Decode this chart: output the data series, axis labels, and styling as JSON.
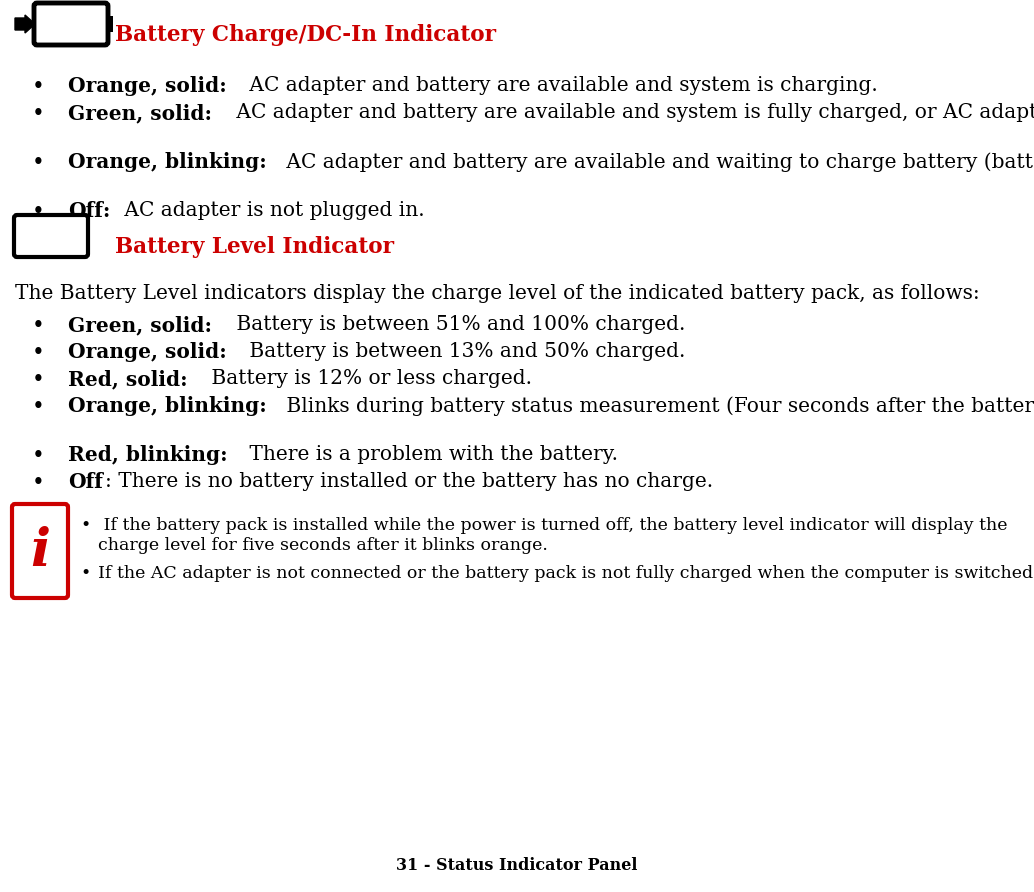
{
  "background_color": "#ffffff",
  "title_color": "#cc0000",
  "text_color": "#000000",
  "footer_text": "31 - Status Indicator Panel",
  "section1_title": "Battery Charge/DC-In Indicator",
  "section2_title": "Battery Level Indicator",
  "intro2": "The Battery Level indicators display the charge level of the indicated battery pack, as follows:",
  "s1_bullets": [
    {
      "b": "Orange, solid:",
      "n": " AC adapter and battery are available and system is charging."
    },
    {
      "b": "Green, solid:",
      "n": " AC adapter and battery are available and system is fully charged, or AC adapter is plugged in but battery is not installed."
    },
    {
      "b": "Orange, blinking:",
      "n": " AC adapter and battery are available and waiting to charge battery (battery is out of thermal range)."
    },
    {
      "b": "Off:",
      "n": " AC adapter is not plugged in."
    }
  ],
  "s2_bullets": [
    {
      "b": "Green, solid:",
      "n": " Battery is between 51% and 100% charged."
    },
    {
      "b": "Orange, solid:",
      "n": " Battery is between 13% and 50% charged."
    },
    {
      "b": "Red, solid:",
      "n": " Battery is 12% or less charged."
    },
    {
      "b": "Orange, blinking:",
      "n": " Blinks during battery status measurement (Four seconds after the battery is installed)."
    },
    {
      "b": "Red, blinking:",
      "n": " There is a problem with the battery."
    },
    {
      "b": "Off",
      "n": ": There is no battery installed or the battery has no charge."
    }
  ],
  "note1_lead": " If the battery pack is installed while the power is turned off, the battery level indicator will display the charge level for five seconds after it blinks orange.",
  "note2_lead": "If the AC adapter is not connected or the battery pack is not fully charged when the computer is switched to standby mode, the indicator will blink. The LED blinks at the rate of one second on/six seconds off."
}
